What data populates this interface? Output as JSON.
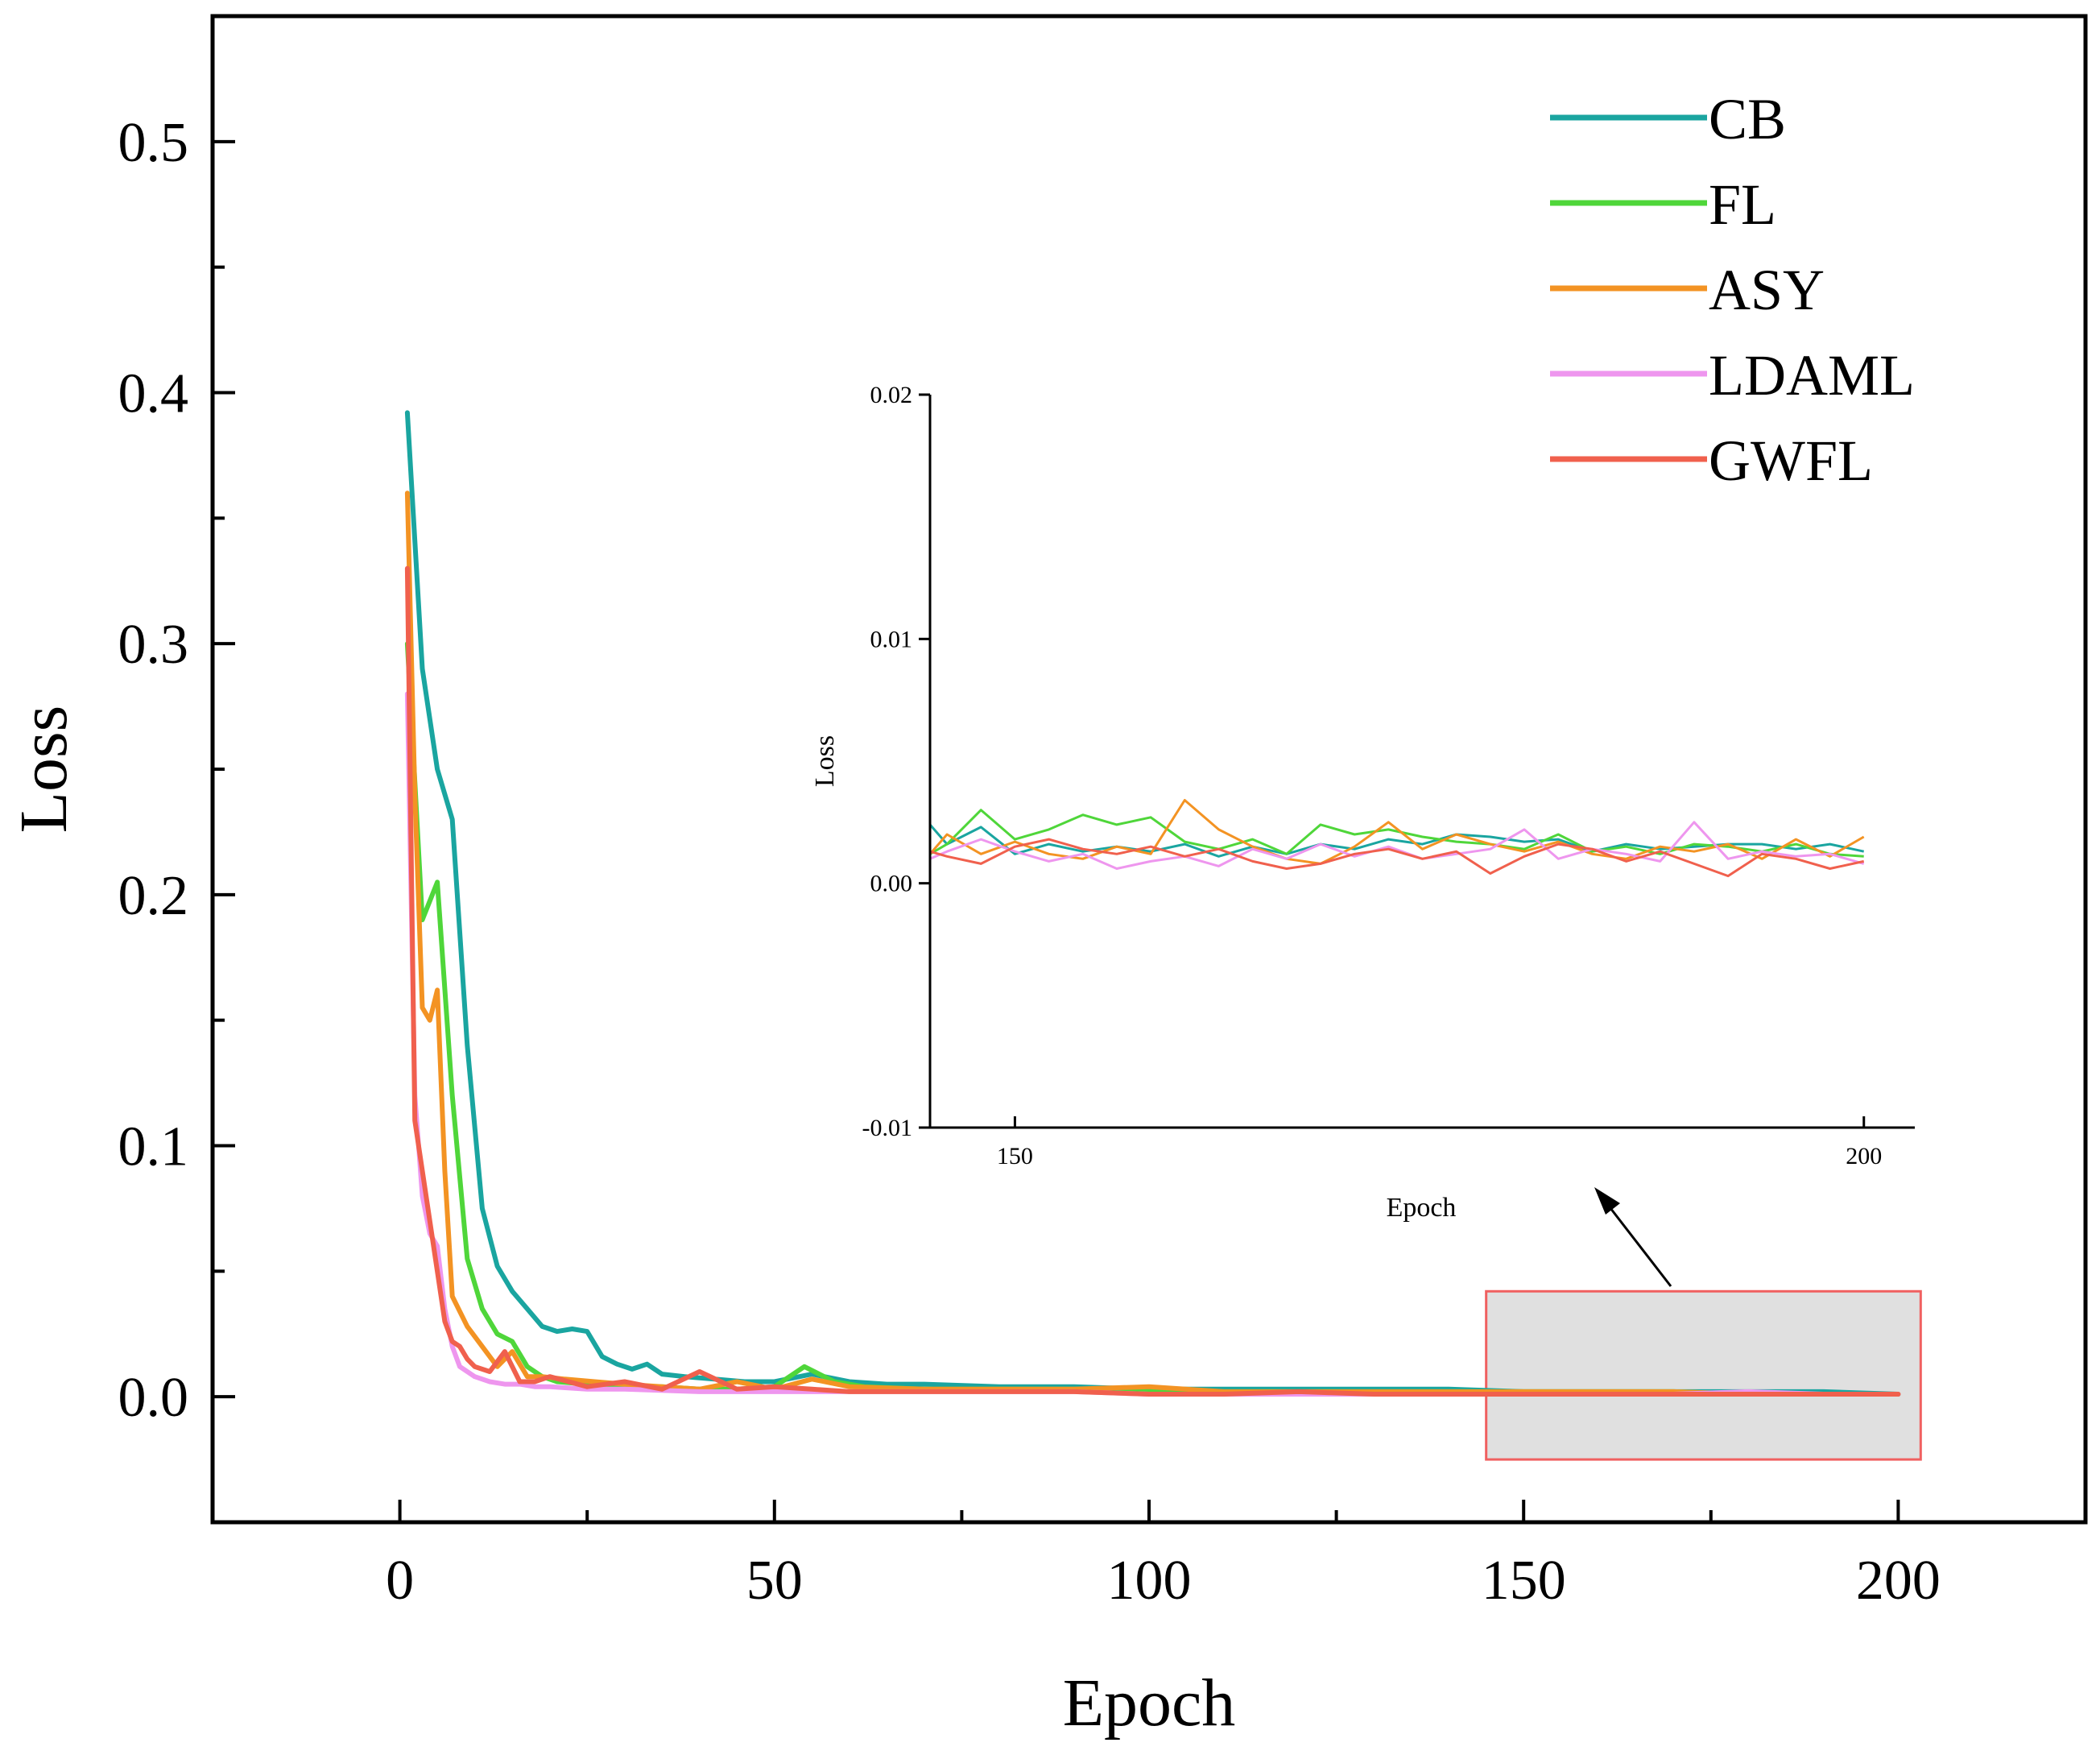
{
  "chart_data": [
    {
      "type": "line",
      "title": "",
      "xlabel": "Epoch",
      "ylabel": "Loss",
      "xlim": [
        -25,
        225
      ],
      "ylim": [
        -0.05,
        0.55
      ],
      "xticks": [
        0,
        50,
        100,
        150,
        200
      ],
      "yticks": [
        0.0,
        0.1,
        0.2,
        0.3,
        0.4,
        0.5
      ],
      "xtick_labels": [
        "0",
        "50",
        "100",
        "150",
        "200"
      ],
      "ytick_labels": [
        "0.0",
        "0.1",
        "0.2",
        "0.3",
        "0.4",
        "0.5"
      ],
      "legend_position": "top-right",
      "series": [
        {
          "name": "CB",
          "color": "#1aa5a0",
          "x": [
            1,
            3,
            5,
            7,
            9,
            11,
            13,
            15,
            17,
            19,
            21,
            23,
            25,
            27,
            29,
            31,
            33,
            35,
            38,
            42,
            46,
            50,
            55,
            60,
            65,
            70,
            80,
            90,
            100,
            110,
            120,
            130,
            140,
            150,
            160,
            170,
            180,
            190,
            200
          ],
          "y": [
            0.392,
            0.29,
            0.25,
            0.23,
            0.14,
            0.075,
            0.052,
            0.042,
            0.035,
            0.028,
            0.026,
            0.027,
            0.026,
            0.016,
            0.013,
            0.011,
            0.013,
            0.009,
            0.008,
            0.007,
            0.006,
            0.006,
            0.009,
            0.006,
            0.005,
            0.005,
            0.004,
            0.004,
            0.003,
            0.003,
            0.003,
            0.003,
            0.003,
            0.002,
            0.002,
            0.002,
            0.002,
            0.002,
            0.001
          ]
        },
        {
          "name": "FL",
          "color": "#4fd63a",
          "x": [
            1,
            3,
            5,
            7,
            9,
            11,
            13,
            15,
            17,
            19,
            21,
            25,
            30,
            35,
            40,
            45,
            50,
            54,
            58,
            62,
            70,
            80,
            90,
            100,
            110,
            120,
            130,
            140,
            150,
            160,
            170,
            180,
            190,
            200
          ],
          "y": [
            0.3,
            0.19,
            0.205,
            0.12,
            0.055,
            0.035,
            0.025,
            0.022,
            0.012,
            0.008,
            0.006,
            0.005,
            0.004,
            0.004,
            0.003,
            0.003,
            0.004,
            0.012,
            0.006,
            0.004,
            0.003,
            0.003,
            0.003,
            0.002,
            0.002,
            0.002,
            0.002,
            0.002,
            0.002,
            0.002,
            0.002,
            0.001,
            0.001,
            0.001
          ]
        },
        {
          "name": "ASY",
          "color": "#f39323",
          "x": [
            1,
            2,
            3,
            4,
            5,
            6,
            7,
            9,
            11,
            13,
            15,
            17,
            19,
            22,
            26,
            30,
            35,
            40,
            45,
            50,
            55,
            60,
            70,
            80,
            90,
            100,
            110,
            120,
            130,
            140,
            150,
            160,
            170,
            180,
            190,
            200
          ],
          "y": [
            0.36,
            0.24,
            0.155,
            0.15,
            0.162,
            0.09,
            0.04,
            0.028,
            0.02,
            0.012,
            0.018,
            0.008,
            0.008,
            0.007,
            0.006,
            0.005,
            0.004,
            0.003,
            0.006,
            0.003,
            0.007,
            0.004,
            0.003,
            0.003,
            0.003,
            0.004,
            0.002,
            0.002,
            0.002,
            0.002,
            0.002,
            0.002,
            0.002,
            0.001,
            0.001,
            0.001
          ]
        },
        {
          "name": "LDAML",
          "color": "#ee96ee",
          "x": [
            1,
            2,
            3,
            4,
            5,
            6,
            7,
            8,
            10,
            12,
            14,
            16,
            18,
            20,
            25,
            30,
            40,
            50,
            60,
            70,
            80,
            90,
            100,
            110,
            120,
            130,
            140,
            150,
            160,
            170,
            180,
            190,
            200
          ],
          "y": [
            0.28,
            0.12,
            0.08,
            0.065,
            0.06,
            0.035,
            0.02,
            0.012,
            0.008,
            0.006,
            0.005,
            0.005,
            0.004,
            0.004,
            0.003,
            0.003,
            0.002,
            0.002,
            0.002,
            0.002,
            0.002,
            0.002,
            0.001,
            0.001,
            0.001,
            0.001,
            0.001,
            0.001,
            0.001,
            0.001,
            0.002,
            0.001,
            0.001
          ]
        },
        {
          "name": "GWFL",
          "color": "#f0604d",
          "x": [
            1,
            2,
            3,
            4,
            5,
            6,
            7,
            8,
            9,
            10,
            12,
            14,
            16,
            18,
            20,
            25,
            30,
            35,
            40,
            45,
            50,
            55,
            60,
            70,
            80,
            90,
            100,
            110,
            120,
            130,
            140,
            150,
            160,
            170,
            180,
            190,
            200
          ],
          "y": [
            0.33,
            0.11,
            0.09,
            0.07,
            0.05,
            0.03,
            0.022,
            0.02,
            0.015,
            0.012,
            0.01,
            0.018,
            0.006,
            0.006,
            0.008,
            0.004,
            0.006,
            0.003,
            0.01,
            0.003,
            0.004,
            0.003,
            0.002,
            0.002,
            0.002,
            0.002,
            0.001,
            0.001,
            0.002,
            0.001,
            0.001,
            0.001,
            0.001,
            0.001,
            0.001,
            0.001,
            0.001
          ]
        }
      ]
    },
    {
      "type": "line",
      "title": "",
      "xlabel": "Epoch",
      "ylabel": "Loss",
      "xlim": [
        145,
        203
      ],
      "ylim": [
        -0.01,
        0.02
      ],
      "xticks": [
        150,
        200
      ],
      "yticks": [
        -0.01,
        0.0,
        0.01,
        0.02
      ],
      "xtick_labels": [
        "150",
        "200"
      ],
      "ytick_labels": [
        "-0.01",
        "0.00",
        "0.01",
        "0.02"
      ],
      "series": [
        {
          "name": "CB",
          "color": "#1aa5a0",
          "x": [
            145,
            146,
            148,
            150,
            152,
            154,
            156,
            158,
            160,
            162,
            164,
            166,
            168,
            170,
            172,
            174,
            176,
            178,
            180,
            182,
            184,
            186,
            188,
            190,
            192,
            194,
            196,
            198,
            200
          ],
          "y": [
            0.0024,
            0.0016,
            0.0023,
            0.0012,
            0.0016,
            0.0013,
            0.0015,
            0.0013,
            0.0016,
            0.0011,
            0.0015,
            0.0012,
            0.0016,
            0.0014,
            0.0018,
            0.0016,
            0.002,
            0.0019,
            0.0017,
            0.0018,
            0.0013,
            0.0016,
            0.0014,
            0.0015,
            0.0016,
            0.0016,
            0.0014,
            0.0016,
            0.0013
          ]
        },
        {
          "name": "FL",
          "color": "#4fd63a",
          "x": [
            145,
            146,
            148,
            150,
            152,
            154,
            156,
            158,
            160,
            162,
            164,
            166,
            168,
            170,
            172,
            174,
            176,
            178,
            180,
            182,
            184,
            186,
            188,
            190,
            192,
            194,
            196,
            198,
            200
          ],
          "y": [
            0.0012,
            0.0016,
            0.003,
            0.0018,
            0.0022,
            0.0028,
            0.0024,
            0.0027,
            0.0017,
            0.0014,
            0.0018,
            0.0012,
            0.0024,
            0.002,
            0.0022,
            0.0019,
            0.0017,
            0.0016,
            0.0014,
            0.002,
            0.0013,
            0.0015,
            0.0012,
            0.0016,
            0.0015,
            0.0013,
            0.0016,
            0.0012,
            0.0011
          ]
        },
        {
          "name": "ASY",
          "color": "#f39323",
          "x": [
            145,
            146,
            148,
            150,
            152,
            154,
            156,
            158,
            160,
            162,
            164,
            166,
            168,
            170,
            172,
            174,
            176,
            178,
            180,
            182,
            184,
            186,
            188,
            190,
            192,
            194,
            196,
            198,
            200
          ],
          "y": [
            0.0012,
            0.002,
            0.0012,
            0.0017,
            0.0012,
            0.001,
            0.0015,
            0.0012,
            0.0034,
            0.0022,
            0.0015,
            0.001,
            0.0008,
            0.0015,
            0.0025,
            0.0014,
            0.002,
            0.0016,
            0.0013,
            0.0017,
            0.0012,
            0.001,
            0.0015,
            0.0013,
            0.0016,
            0.001,
            0.0018,
            0.0011,
            0.0019
          ]
        },
        {
          "name": "LDAML",
          "color": "#ee96ee",
          "x": [
            145,
            146,
            148,
            150,
            152,
            154,
            156,
            158,
            160,
            162,
            164,
            166,
            168,
            170,
            172,
            174,
            176,
            178,
            180,
            182,
            184,
            186,
            188,
            190,
            192,
            194,
            196,
            198,
            200
          ],
          "y": [
            0.001,
            0.0013,
            0.0018,
            0.0013,
            0.0009,
            0.0012,
            0.0006,
            0.0009,
            0.0011,
            0.0007,
            0.0014,
            0.001,
            0.0016,
            0.0011,
            0.0015,
            0.001,
            0.0012,
            0.0014,
            0.0022,
            0.001,
            0.0014,
            0.0012,
            0.0009,
            0.0025,
            0.001,
            0.0013,
            0.0011,
            0.0012,
            0.0008
          ]
        },
        {
          "name": "GWFL",
          "color": "#f0604d",
          "x": [
            145,
            146,
            148,
            150,
            152,
            154,
            156,
            158,
            160,
            162,
            164,
            166,
            168,
            170,
            172,
            174,
            176,
            178,
            180,
            182,
            184,
            186,
            188,
            190,
            192,
            194,
            196,
            198,
            200
          ],
          "y": [
            0.0013,
            0.0011,
            0.0008,
            0.0015,
            0.0018,
            0.0014,
            0.0012,
            0.0015,
            0.0011,
            0.0014,
            0.0009,
            0.0006,
            0.0008,
            0.0012,
            0.0014,
            0.001,
            0.0013,
            0.0004,
            0.0011,
            0.0016,
            0.0014,
            0.0009,
            0.0013,
            0.0008,
            0.0003,
            0.0012,
            0.001,
            0.0006,
            0.0009
          ]
        }
      ]
    }
  ],
  "zoom_box": {
    "x_range": [
      145,
      203
    ],
    "y_range": [
      -0.025,
      0.042
    ],
    "fill": "#e0e0e0",
    "stroke": "#f06060"
  }
}
